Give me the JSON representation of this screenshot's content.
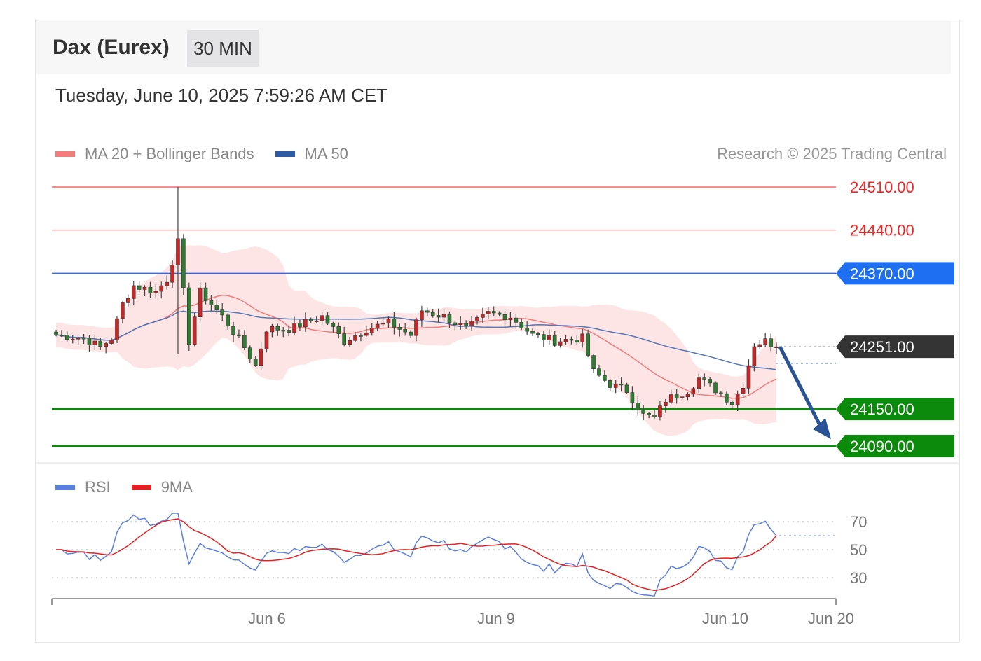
{
  "header": {
    "title": "Dax (Eurex)",
    "timeframe": "30 MIN"
  },
  "timestamp": "Tuesday, June 10, 2025 7:59:26 AM CET",
  "legend": {
    "ma20": {
      "label": "MA 20 + Bollinger Bands",
      "color": "#f47c7c"
    },
    "ma50": {
      "label": "MA 50",
      "color": "#2c5ba8"
    }
  },
  "copyright": "Research © 2025 Trading Central",
  "rsi_legend": {
    "rsi": {
      "label": "RSI",
      "color": "#5b7fe0"
    },
    "ma9": {
      "label": "9MA",
      "color": "#e52020"
    }
  },
  "chart_data": {
    "type": "candlestick",
    "x_ticks": [
      "Jun 6",
      "Jun 9",
      "Jun 10",
      "Jun 20"
    ],
    "y_range": [
      24070,
      24520
    ],
    "last_price": "24251.00",
    "levels": [
      {
        "label": "24510.00",
        "value": 24510,
        "kind": "resistance",
        "color": "#ff2020"
      },
      {
        "label": "24440.00",
        "value": 24440,
        "kind": "resistance",
        "color": "#ff2020"
      },
      {
        "label": "24370.00",
        "value": 24370,
        "kind": "pivot",
        "color": "#1e6ff2"
      },
      {
        "label": "24150.00",
        "value": 24150,
        "kind": "support",
        "color": "#0b8a0b"
      },
      {
        "label": "24090.00",
        "value": 24090,
        "kind": "support",
        "color": "#0b8a0b"
      }
    ],
    "forecast_arrow": {
      "from": 24251,
      "to": 24090,
      "direction": "down"
    },
    "rsi": {
      "ticks": [
        "70",
        "50",
        "30"
      ],
      "range": [
        10,
        80
      ],
      "last_rsi": 60,
      "last_ma9": 60
    }
  }
}
